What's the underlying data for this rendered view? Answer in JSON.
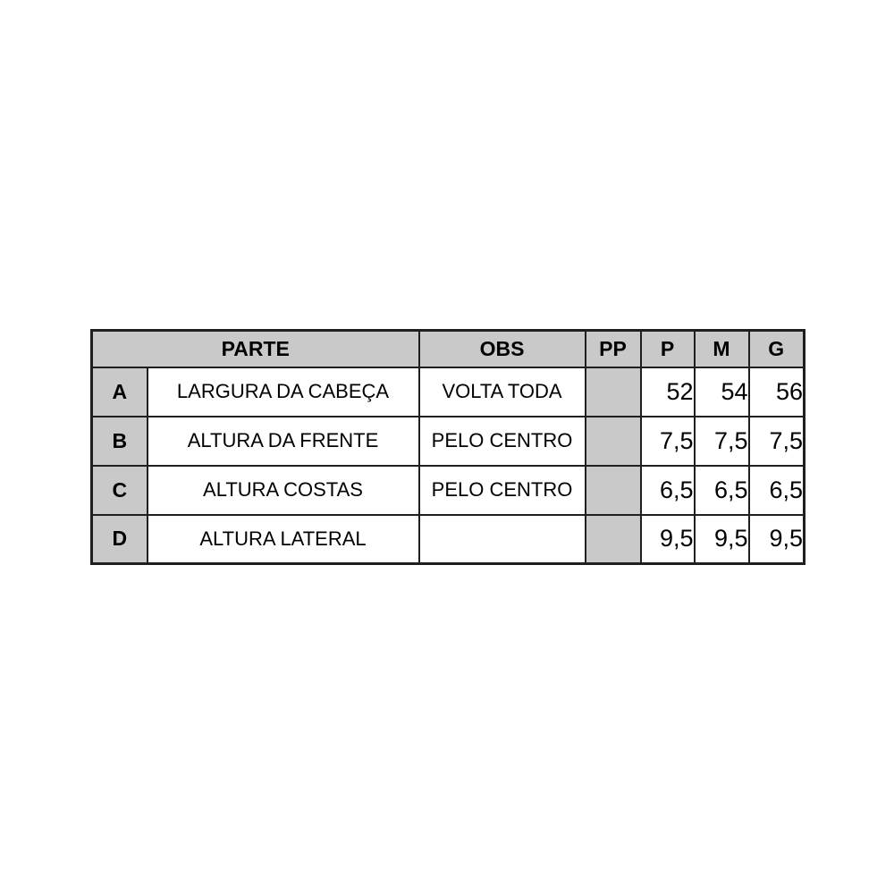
{
  "chart_data": {
    "type": "table",
    "columns": {
      "parte": "PARTE",
      "obs": "OBS",
      "pp": "PP",
      "p": "P",
      "m": "M",
      "g": "G"
    },
    "rows": [
      {
        "id": "A",
        "parte": "LARGURA DA CABEÇA",
        "obs": "VOLTA TODA",
        "pp": "",
        "p": "52",
        "m": "54",
        "g": "56"
      },
      {
        "id": "B",
        "parte": "ALTURA DA FRENTE",
        "obs": "PELO CENTRO",
        "pp": "",
        "p": "7,5",
        "m": "7,5",
        "g": "7,5"
      },
      {
        "id": "C",
        "parte": "ALTURA COSTAS",
        "obs": "PELO CENTRO",
        "pp": "",
        "p": "6,5",
        "m": "6,5",
        "g": "6,5"
      },
      {
        "id": "D",
        "parte": "ALTURA LATERAL",
        "obs": "",
        "pp": "",
        "p": "9,5",
        "m": "9,5",
        "g": "9,5"
      }
    ],
    "layout": {
      "grid": "black cell borders",
      "shaded_cells": "header row, letter column, PP column",
      "shade_color": "#c9c9c9",
      "number_alignment": "right"
    }
  },
  "colors": {
    "header_bg": "#c9c9c9",
    "border": "#1f1f1f",
    "text": "#000000",
    "page_bg": "#ffffff"
  }
}
